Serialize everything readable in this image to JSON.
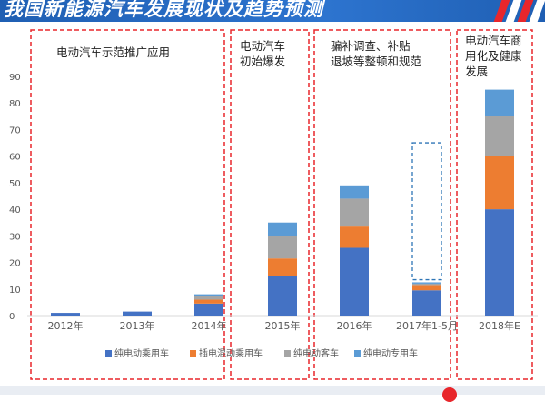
{
  "header": {
    "title": "我国新能源汽车发展现状及趋势预测"
  },
  "regions": [
    {
      "lines": [
        "电动汽车示范推广应用"
      ]
    },
    {
      "lines": [
        "电动汽车",
        "初始爆发"
      ]
    },
    {
      "lines": [
        "骗补调查、补贴",
        "退坡等整顿和规范"
      ]
    },
    {
      "lines": [
        "电动汽车商",
        "用化及健康",
        "发展"
      ]
    }
  ],
  "chart_data": {
    "type": "bar",
    "stacked": true,
    "categories": [
      "2012年",
      "2013年",
      "2014年",
      "2015年",
      "2016年",
      "2017年1-5月",
      "2018年E"
    ],
    "series": [
      {
        "name": "纯电动乘用车",
        "color": "#4472c4",
        "values": [
          1,
          1.5,
          4.5,
          15,
          25.5,
          9.5,
          40
        ]
      },
      {
        "name": "插电混动乘用车",
        "color": "#ed7d31",
        "values": [
          0,
          0,
          1.5,
          6.5,
          8,
          2,
          20
        ]
      },
      {
        "name": "纯电动客车",
        "color": "#a5a5a5",
        "values": [
          0,
          0,
          1.5,
          8.5,
          10.5,
          0.5,
          15
        ]
      },
      {
        "name": "纯电动专用车",
        "color": "#5b9bd5",
        "values": [
          0,
          0,
          0.5,
          5,
          5,
          0.5,
          10
        ]
      }
    ],
    "projection_box": {
      "category": "2017年1-5月",
      "from": 13.5,
      "to": 65
    },
    "ylim": [
      0,
      90
    ],
    "yticks": [
      0,
      10,
      20,
      30,
      40,
      50,
      60,
      70,
      80,
      90
    ],
    "legend_position": "bottom",
    "grid": false
  }
}
